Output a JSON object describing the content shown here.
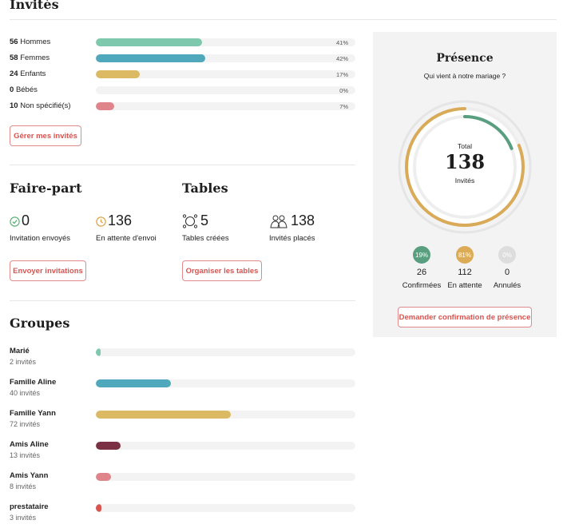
{
  "invites": {
    "title": "Invités",
    "rows": [
      {
        "count": "56",
        "label": "Hommes",
        "pct": "41%",
        "value": 0.41,
        "color": "#7ec8ad"
      },
      {
        "count": "58",
        "label": "Femmes",
        "pct": "42%",
        "value": 0.42,
        "color": "#4fa8bb"
      },
      {
        "count": "24",
        "label": "Enfants",
        "pct": "17%",
        "value": 0.17,
        "color": "#dcba63"
      },
      {
        "count": "0",
        "label": "Bébés",
        "pct": "0%",
        "value": 0.0,
        "color": "#cccccc"
      },
      {
        "count": "10",
        "label": "Non spécifié(s)",
        "pct": "7%",
        "value": 0.07,
        "color": "#e0848c"
      }
    ],
    "manage_button": "Gérer mes invités"
  },
  "faire_part": {
    "title": "Faire-part",
    "sent_value": "0",
    "sent_label": "Invitation envoyés",
    "pending_value": "136",
    "pending_label": "En attente d'envoi",
    "send_button": "Envoyer invitations",
    "sent_icon": "check-circle-icon",
    "pending_icon": "clock-icon"
  },
  "tables": {
    "title": "Tables",
    "created_value": "5",
    "created_label": "Tables créées",
    "seated_value": "138",
    "seated_label": "Invités placés",
    "organize_button": "Organiser les tables",
    "table_icon": "round-table-icon",
    "guests_icon": "couple-icon"
  },
  "groups": {
    "title": "Groupes",
    "items": [
      {
        "name": "Marié",
        "count": "2 invités",
        "value": 0.015,
        "color": "#7ec8ad"
      },
      {
        "name": "Famille Aline",
        "count": "40 invités",
        "value": 0.29,
        "color": "#4fa8bb"
      },
      {
        "name": "Famille Yann",
        "count": "72 invités",
        "value": 0.52,
        "color": "#dcba63"
      },
      {
        "name": "Amis Aline",
        "count": "13 invités",
        "value": 0.094,
        "color": "#7a3143"
      },
      {
        "name": "Amis Yann",
        "count": "8 invités",
        "value": 0.058,
        "color": "#e0848c"
      },
      {
        "name": "prestataire",
        "count": "3 invités",
        "value": 0.022,
        "color": "#d9534f"
      }
    ]
  },
  "presence": {
    "title": "Présence",
    "subtitle": "Qui vient à notre mariage ?",
    "total_label": "Total",
    "total_value": "138",
    "total_unit": "Invités",
    "confirmed_share": 0.19,
    "pending_share": 0.81,
    "stats": [
      {
        "pct": "19%",
        "value": "26",
        "label": "Confirmées",
        "color": "#5a9e80"
      },
      {
        "pct": "81%",
        "value": "112",
        "label": "En attente",
        "color": "#dcab55"
      },
      {
        "pct": "0%",
        "value": "0",
        "label": "Annulés",
        "color": "#dddddd"
      }
    ],
    "request_button": "Demander confirmation de présence"
  }
}
